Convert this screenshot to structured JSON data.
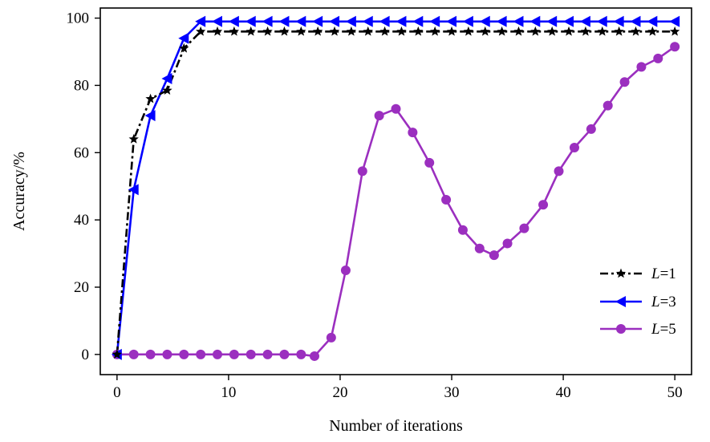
{
  "chart_data": {
    "type": "line",
    "title": "",
    "xlabel": "Number of iterations",
    "ylabel": "Accuracy/%",
    "xlim": [
      -1.5,
      51.5
    ],
    "ylim": [
      -6,
      103
    ],
    "xticks": [
      0,
      10,
      20,
      30,
      40,
      50
    ],
    "yticks": [
      0,
      20,
      40,
      60,
      80,
      100
    ],
    "grid": false,
    "legend_position": "bottom-right",
    "series": [
      {
        "name": "L=1",
        "name_var": "L",
        "name_val": "=1",
        "color": "#000000",
        "line_style": "dash-dot",
        "marker": "star",
        "x": [
          0,
          1.5,
          3,
          4.5,
          6,
          7.5,
          9,
          10.5,
          12,
          13.5,
          15,
          16.5,
          18,
          19.5,
          21,
          22.5,
          24,
          25.5,
          27,
          28.5,
          30,
          31.5,
          33,
          34.5,
          36,
          37.5,
          39,
          40.5,
          42,
          43.5,
          45,
          46.5,
          48,
          50
        ],
        "y": [
          0,
          64,
          76,
          78.5,
          91,
          96,
          96,
          96,
          96,
          96,
          96,
          96,
          96,
          96,
          96,
          96,
          96,
          96,
          96,
          96,
          96,
          96,
          96,
          96,
          96,
          96,
          96,
          96,
          96,
          96,
          96,
          96,
          96,
          96
        ]
      },
      {
        "name": "L=3",
        "name_var": "L",
        "name_val": "=3",
        "color": "#0000ff",
        "line_style": "solid",
        "marker": "triangle-left",
        "x": [
          0,
          1.5,
          3,
          4.5,
          6,
          7.5,
          9,
          10.5,
          12,
          13.5,
          15,
          16.5,
          18,
          19.5,
          21,
          22.5,
          24,
          25.5,
          27,
          28.5,
          30,
          31.5,
          33,
          34.5,
          36,
          37.5,
          39,
          40.5,
          42,
          43.5,
          45,
          46.5,
          48,
          50
        ],
        "y": [
          0,
          49,
          71,
          82,
          94,
          99,
          99,
          99,
          99,
          99,
          99,
          99,
          99,
          99,
          99,
          99,
          99,
          99,
          99,
          99,
          99,
          99,
          99,
          99,
          99,
          99,
          99,
          99,
          99,
          99,
          99,
          99,
          99,
          99
        ]
      },
      {
        "name": "L=5",
        "name_var": "L",
        "name_val": "=5",
        "color": "#9b2fbf",
        "line_style": "solid",
        "marker": "circle",
        "x": [
          0,
          1.5,
          3,
          4.5,
          6,
          7.5,
          9,
          10.5,
          12,
          13.5,
          15,
          16.5,
          17.7,
          19.2,
          20.5,
          22,
          23.5,
          25,
          26.5,
          28,
          29.5,
          31,
          32.5,
          33.8,
          35,
          36.5,
          38.2,
          39.6,
          41,
          42.5,
          44,
          45.5,
          47,
          48.5,
          50
        ],
        "y": [
          0,
          0,
          0,
          0,
          0,
          0,
          0,
          0,
          0,
          0,
          0,
          0,
          -0.5,
          5,
          25,
          54.5,
          71,
          73,
          66,
          57,
          46,
          37,
          31.5,
          29.5,
          33,
          37.5,
          44.5,
          54.5,
          61.5,
          67,
          74,
          81,
          85.5,
          88,
          91.5
        ]
      }
    ]
  }
}
